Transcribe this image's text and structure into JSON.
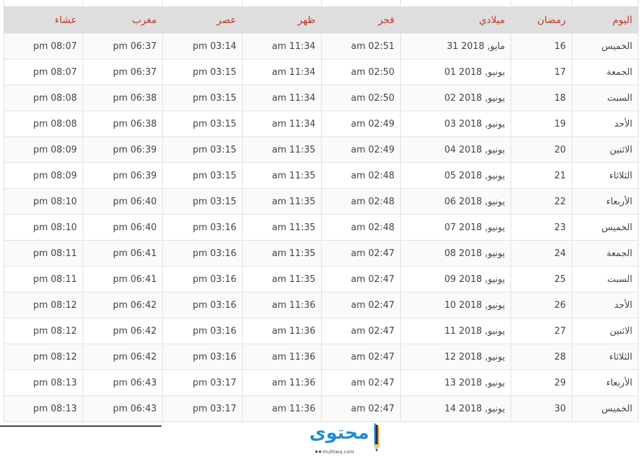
{
  "headers": [
    "اليوم",
    "رمضان",
    "ميلادي",
    "فجر",
    "ظهر",
    "عصر",
    "مغرب",
    "عشاء"
  ],
  "rows": [
    [
      "الخميس",
      "16",
      "31 مايو, 2018",
      "am 02:51",
      "am 11:34",
      "pm 03:14",
      "pm 06:37",
      "pm 08:07"
    ],
    [
      "الجمعة",
      "17",
      "01 يونيو, 2018",
      "am 02:50",
      "am 11:34",
      "pm 03:15",
      "pm 06:37",
      "pm 08:07"
    ],
    [
      "السبت",
      "18",
      "02 يونيو, 2018",
      "am 02:50",
      "am 11:34",
      "pm 03:15",
      "pm 06:38",
      "pm 08:08"
    ],
    [
      "الأحد",
      "19",
      "03 يونيو, 2018",
      "am 02:49",
      "am 11:34",
      "pm 03:15",
      "pm 06:38",
      "pm 08:08"
    ],
    [
      "الاثنين",
      "20",
      "04 يونيو, 2018",
      "am 02:49",
      "am 11:35",
      "pm 03:15",
      "pm 06:39",
      "pm 08:09"
    ],
    [
      "الثلاثاء",
      "21",
      "05 يونيو, 2018",
      "am 02:48",
      "am 11:35",
      "pm 03:15",
      "pm 06:39",
      "pm 08:09"
    ],
    [
      "الأربعاء",
      "22",
      "06 يونيو, 2018",
      "am 02:48",
      "am 11:35",
      "pm 03:15",
      "pm 06:40",
      "pm 08:10"
    ],
    [
      "الخميس",
      "23",
      "07 يونيو, 2018",
      "am 02:48",
      "am 11:35",
      "pm 03:16",
      "pm 06:40",
      "pm 08:10"
    ],
    [
      "الجمعة",
      "24",
      "08 يونيو, 2018",
      "am 02:47",
      "am 11:35",
      "pm 03:16",
      "pm 06:41",
      "pm 08:11"
    ],
    [
      "السبت",
      "25",
      "09 يونيو, 2018",
      "am 02:47",
      "am 11:35",
      "pm 03:16",
      "pm 06:41",
      "pm 08:11"
    ],
    [
      "الأحد",
      "26",
      "10 يونيو, 2018",
      "am 02:47",
      "am 11:36",
      "pm 03:16",
      "pm 06:42",
      "pm 08:12"
    ],
    [
      "الاثنين",
      "27",
      "11 يونيو, 2018",
      "am 02:47",
      "am 11:36",
      "pm 03:16",
      "pm 06:42",
      "pm 08:12"
    ],
    [
      "الثلاثاء",
      "28",
      "12 يونيو, 2018",
      "am 02:47",
      "am 11:36",
      "pm 03:16",
      "pm 06:42",
      "pm 08:12"
    ],
    [
      "الأربعاء",
      "29",
      "13 يونيو, 2018",
      "am 02:47",
      "am 11:36",
      "pm 03:17",
      "pm 06:43",
      "pm 08:13"
    ],
    [
      "الخميس",
      "30",
      "14 يونيو, 2018",
      "am 02:47",
      "am 11:36",
      "pm 03:17",
      "pm 06:43",
      "pm 08:13"
    ]
  ],
  "logo": {
    "text": "محتوى",
    "domain": "muhtwa.com"
  },
  "colors": {
    "header_text": "#c0392b",
    "header_bg": "#dedede",
    "logo_blue": "#1f8dd6"
  }
}
